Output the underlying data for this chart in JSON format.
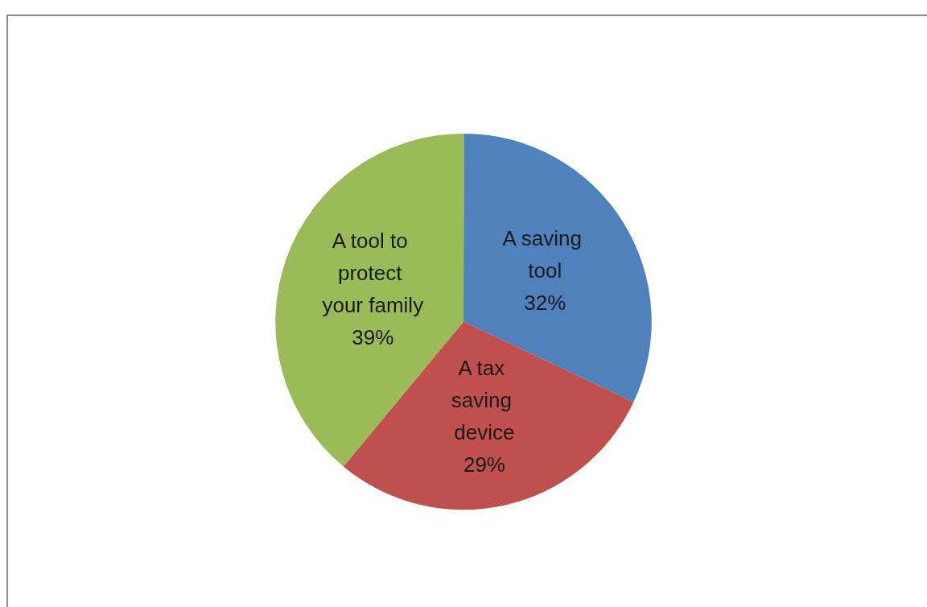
{
  "chart_data": {
    "type": "pie",
    "categories": [
      "A saving tool",
      "A tax saving device",
      "A tool to protect your family"
    ],
    "values": [
      32,
      29,
      39
    ],
    "colors": [
      "#4f81bd",
      "#c0504d",
      "#9bbb59"
    ],
    "value_labels": [
      "32%",
      "29%",
      "39%"
    ],
    "legend": false
  }
}
